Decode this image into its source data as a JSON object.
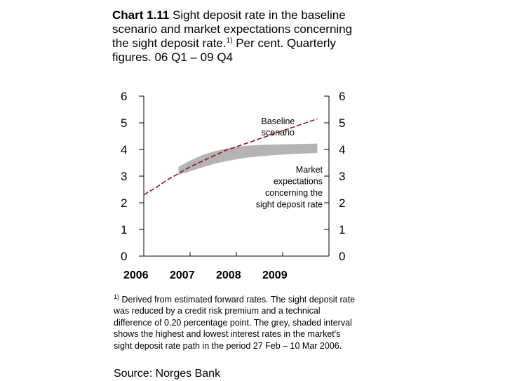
{
  "title": {
    "number": "Chart 1.11",
    "text": "Sight deposit rate in the baseline scenario and market expectations concerning the sight deposit rate.",
    "marker": "1)",
    "suffix": "Per cent. Quarterly figures. 06 Q1 – 09 Q4"
  },
  "chart_data": {
    "type": "line",
    "ylim": [
      0,
      6
    ],
    "yticks": [
      "0",
      "1",
      "2",
      "3",
      "4",
      "5",
      "6"
    ],
    "xlim": [
      2006,
      2010
    ],
    "xticks": [
      "2006",
      "2007",
      "2008",
      "2009"
    ],
    "quarters": [
      "06 Q1",
      "06 Q2",
      "06 Q3",
      "06 Q4",
      "07 Q1",
      "07 Q2",
      "07 Q3",
      "07 Q4",
      "08 Q1",
      "08 Q2",
      "08 Q3",
      "08 Q4",
      "09 Q1",
      "09 Q2",
      "09 Q3",
      "09 Q4"
    ],
    "series": [
      {
        "name": "Baseline scenario",
        "x": [
          2006.0,
          2006.25,
          2006.5,
          2006.75,
          2007.0,
          2007.25,
          2007.5,
          2007.75,
          2008.0,
          2008.25,
          2008.5,
          2008.75,
          2009.0,
          2009.25,
          2009.5,
          2009.75
        ],
        "values": [
          2.3,
          2.55,
          2.85,
          3.1,
          3.35,
          3.55,
          3.75,
          3.95,
          4.1,
          4.25,
          4.4,
          4.55,
          4.7,
          4.85,
          5.0,
          5.15
        ],
        "color": "#8b1a1a",
        "style": "dashed"
      }
    ],
    "band": {
      "name": "Market expectations concerning the sight deposit rate",
      "x": [
        2006.75,
        2007.0,
        2007.25,
        2007.5,
        2007.75,
        2008.0,
        2008.25,
        2008.5,
        2008.75,
        2009.0,
        2009.25,
        2009.5,
        2009.75
      ],
      "upper": [
        3.35,
        3.58,
        3.78,
        3.92,
        4.02,
        4.1,
        4.14,
        4.17,
        4.18,
        4.19,
        4.2,
        4.21,
        4.22
      ],
      "lower": [
        3.05,
        3.18,
        3.32,
        3.45,
        3.55,
        3.63,
        3.7,
        3.74,
        3.78,
        3.81,
        3.83,
        3.85,
        3.87
      ],
      "color": "#b4b4b4"
    },
    "annotations": [
      {
        "text": "Baseline\nscenario",
        "x": 2008.9,
        "y": 4.95
      },
      {
        "text": "Market\nexpectations\nconcerning the\nsight deposit rate",
        "x": 2009.2,
        "y": 3.45
      }
    ],
    "grid": false
  },
  "footnote": {
    "marker": "1)",
    "text": "Derived from estimated forward rates. The sight deposit rate was reduced by a credit risk premium and a technical difference of 0.20 percentage point. The grey, shaded interval shows the highest and lowest interest rates in the market's sight deposit rate path in the period 27 Feb – 10 Mar 2006."
  },
  "source": "Source: Norges Bank"
}
